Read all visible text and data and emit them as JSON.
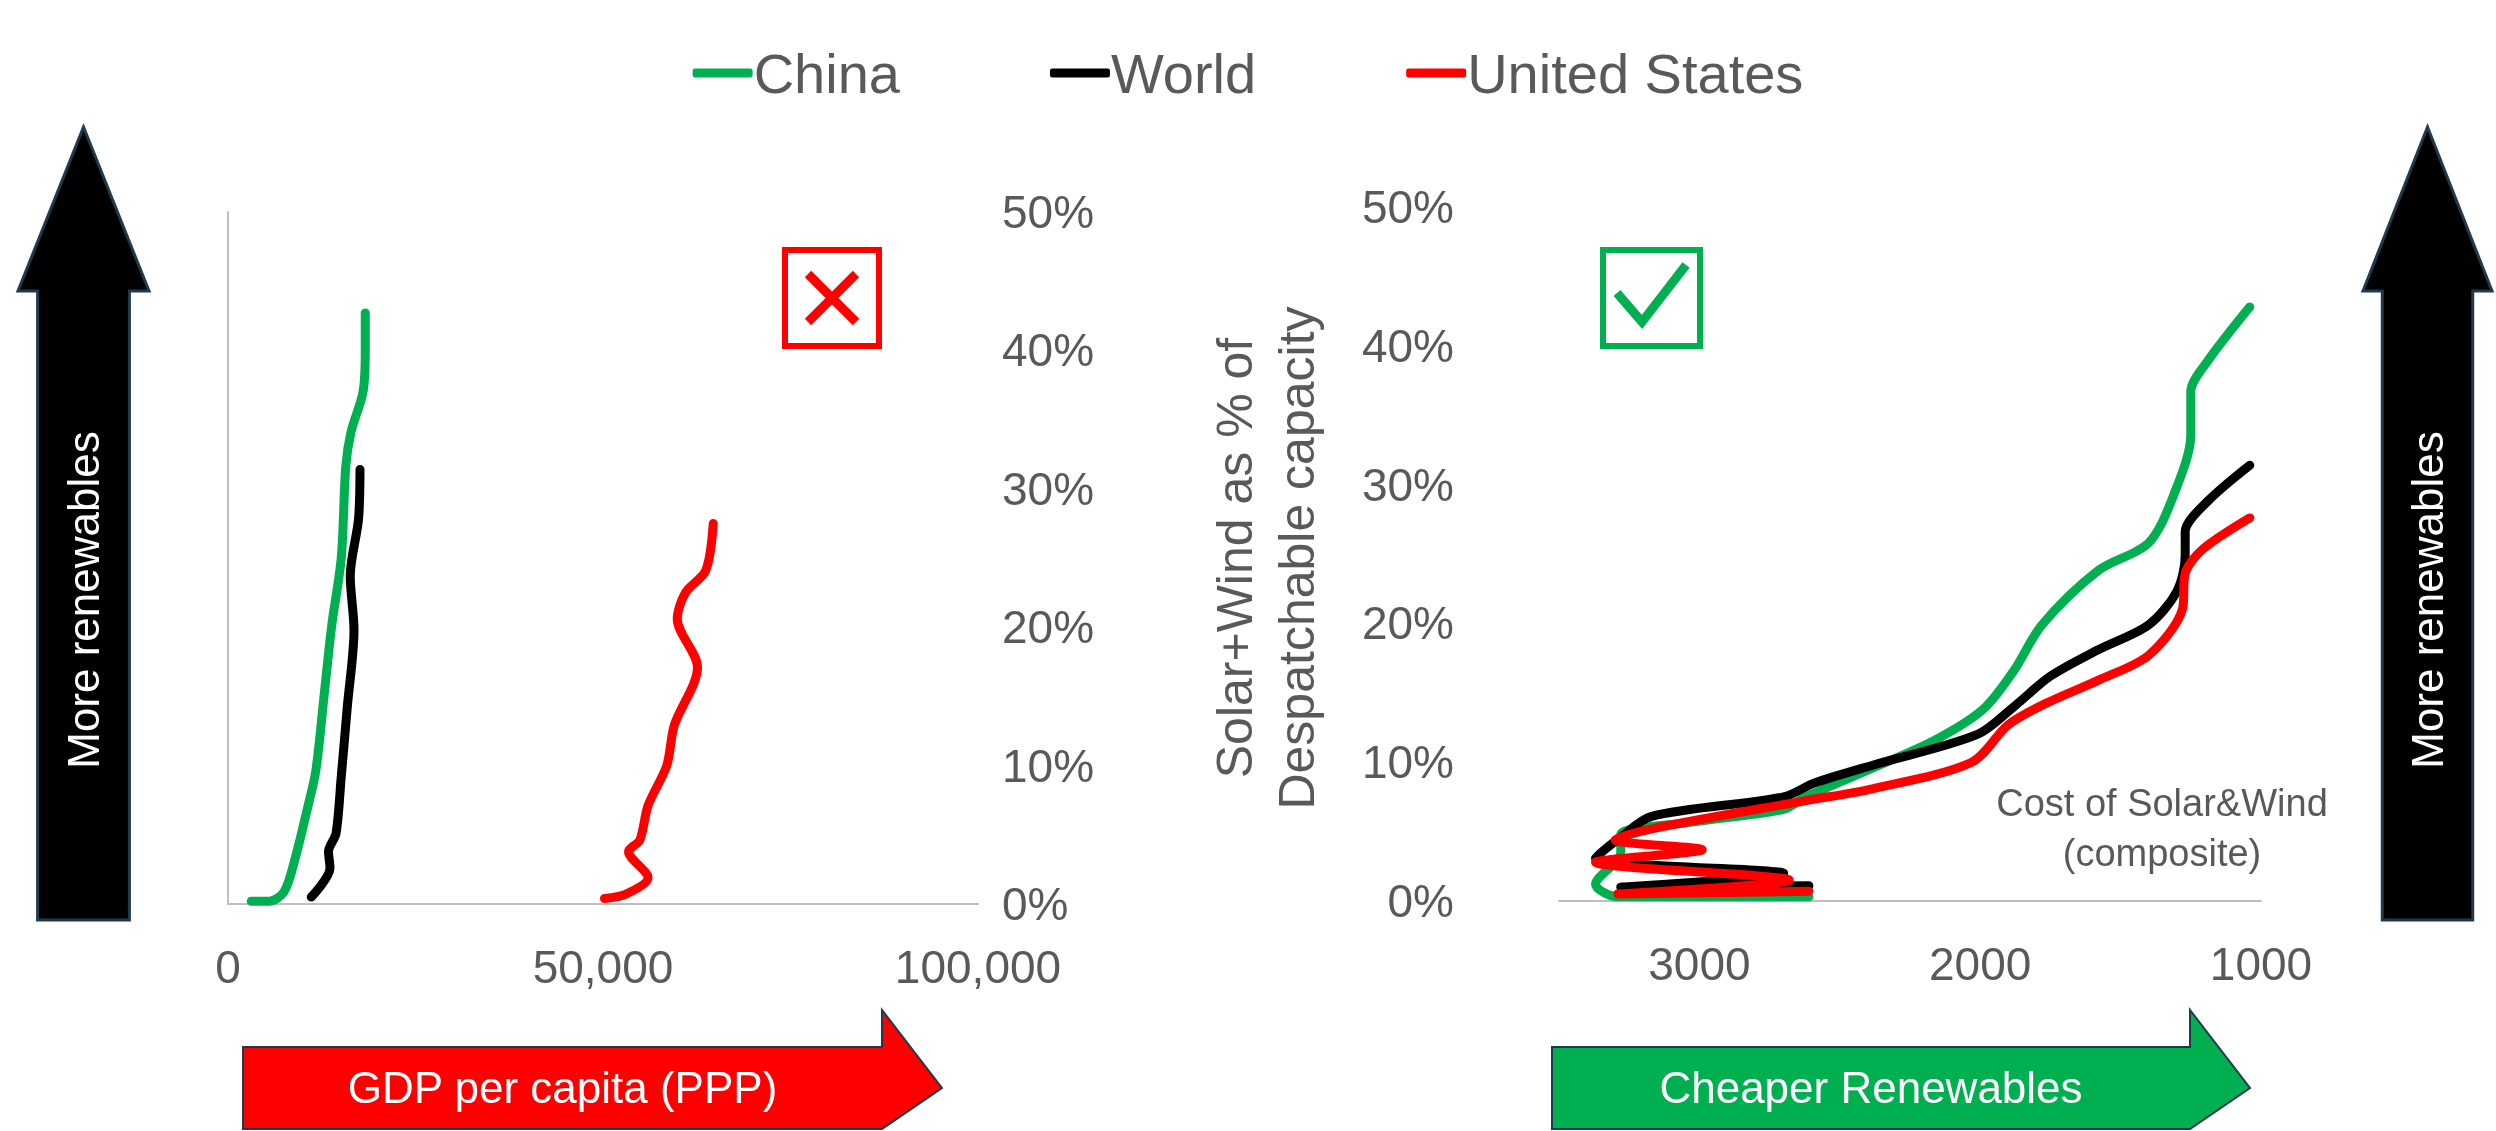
{
  "chart_data": [
    {
      "type": "line",
      "xlabel": "GDP per capita (PPP)",
      "y2label": "Solar+Wind as % of Despatchable capacity",
      "annotations": [
        "More renewables"
      ],
      "legend": "top",
      "marker": "none",
      "grid": false,
      "xlim": [
        0,
        100000
      ],
      "xticks": [
        0,
        {
          "value": 50000,
          "label": "50,000"
        },
        {
          "value": 100000,
          "label": "100,000"
        }
      ],
      "y2lim": [
        0,
        50
      ],
      "y2ticks": [
        {
          "value": 0,
          "label": "0%"
        },
        {
          "value": 10,
          "label": "10%"
        },
        {
          "value": 20,
          "label": "20%"
        },
        {
          "value": 30,
          "label": "30%"
        },
        {
          "value": 40,
          "label": "40%"
        },
        {
          "value": 50,
          "label": "50%"
        }
      ],
      "series": [
        {
          "name": "China",
          "color": "#00b050",
          "axis": "y2",
          "x": [
            3100,
            5500,
            7500,
            9000,
            10500,
            11700,
            12800,
            13800,
            15100,
            15700,
            16400,
            18000,
            18300,
            18300
          ],
          "values": [
            0.2,
            0.2,
            0.9,
            3.4,
            6.7,
            9.6,
            15.0,
            20.0,
            25.0,
            31.6,
            34.1,
            37.0,
            39.9,
            42.7
          ]
        },
        {
          "name": "World",
          "color": "#000000",
          "axis": "y2",
          "x": [
            11100,
            13600,
            13400,
            14400,
            15100,
            15900,
            16800,
            16300,
            17400,
            17600
          ],
          "values": [
            0.5,
            2.6,
            3.8,
            5.1,
            9.2,
            14.2,
            19.8,
            23.7,
            27.8,
            31.4
          ]
        },
        {
          "name": "United States",
          "color": "#ff0000",
          "axis": "y2",
          "x": [
            50200,
            53000,
            56000,
            53400,
            54900,
            56000,
            58500,
            59500,
            62600,
            59900,
            61000,
            63700,
            64700
          ],
          "values": [
            0.4,
            0.7,
            1.9,
            3.8,
            4.6,
            7.1,
            10.0,
            12.9,
            17.1,
            20.6,
            22.5,
            24.1,
            27.5
          ]
        }
      ]
    },
    {
      "type": "line",
      "xlabel": "Cheaper Renewables",
      "annotations": [
        "Cost of Solar&Wind (composite)",
        "More renewables"
      ],
      "marker": "none",
      "grid": false,
      "xlim": [
        3500,
        1000
      ],
      "xticks": [
        3000,
        2000,
        1000
      ],
      "ylim": [
        0,
        50
      ],
      "yticks": [
        {
          "value": 0,
          "label": "0%"
        },
        {
          "value": 10,
          "label": "10%"
        },
        {
          "value": 20,
          "label": "20%"
        },
        {
          "value": 30,
          "label": "30%"
        },
        {
          "value": 40,
          "label": "40%"
        },
        {
          "value": 50,
          "label": "50%"
        }
      ],
      "series": [
        {
          "color": "#00b050",
          "x": [
            2610,
            3290,
            3370,
            3280,
            3280,
            3020,
            2700,
            2630,
            2380,
            2160,
            1990,
            1880,
            1780,
            1580,
            1400,
            1310,
            1250,
            1250,
            1190,
            1040
          ],
          "values": [
            0.3,
            0.3,
            1.2,
            3.5,
            4.8,
            5.7,
            6.6,
            7.4,
            9.6,
            11.6,
            13.8,
            16.6,
            19.9,
            23.8,
            25.8,
            29.3,
            33.6,
            36.7,
            38.9,
            42.8
          ]
        },
        {
          "color": "#000000",
          "x": [
            2610,
            3280,
            2700,
            3370,
            3280,
            3170,
            2700,
            2590,
            2380,
            2010,
            1880,
            1750,
            1580,
            1400,
            1300,
            1270,
            1270,
            1190,
            1040
          ],
          "values": [
            1.1,
            1.0,
            2.0,
            3.1,
            4.6,
            6.1,
            7.5,
            8.5,
            9.8,
            12.0,
            14.0,
            16.2,
            18.1,
            19.9,
            22.3,
            24.9,
            26.6,
            28.8,
            31.4
          ]
        },
        {
          "color": "#ff0000",
          "x": [
            2610,
            3290,
            2680,
            3370,
            2990,
            3300,
            3170,
            2630,
            2380,
            2030,
            1900,
            1770,
            1580,
            1400,
            1280,
            1270,
            1210,
            1040
          ],
          "values": [
            0.7,
            0.5,
            1.5,
            2.8,
            3.7,
            4.4,
            5.2,
            7.2,
            8.1,
            10.0,
            12.7,
            14.2,
            15.9,
            17.7,
            21.0,
            23.6,
            25.3,
            27.6
          ]
        }
      ]
    }
  ]
}
